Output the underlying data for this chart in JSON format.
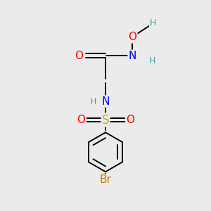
{
  "bg_color": "#ebebeb",
  "fig_size": [
    3.0,
    3.0
  ],
  "dpi": 100,
  "colors": {
    "C": "black",
    "O": "#ff0000",
    "N": "#0000ff",
    "S": "#c8b400",
    "Br": "#cc7700",
    "H": "#4a9a9a"
  }
}
